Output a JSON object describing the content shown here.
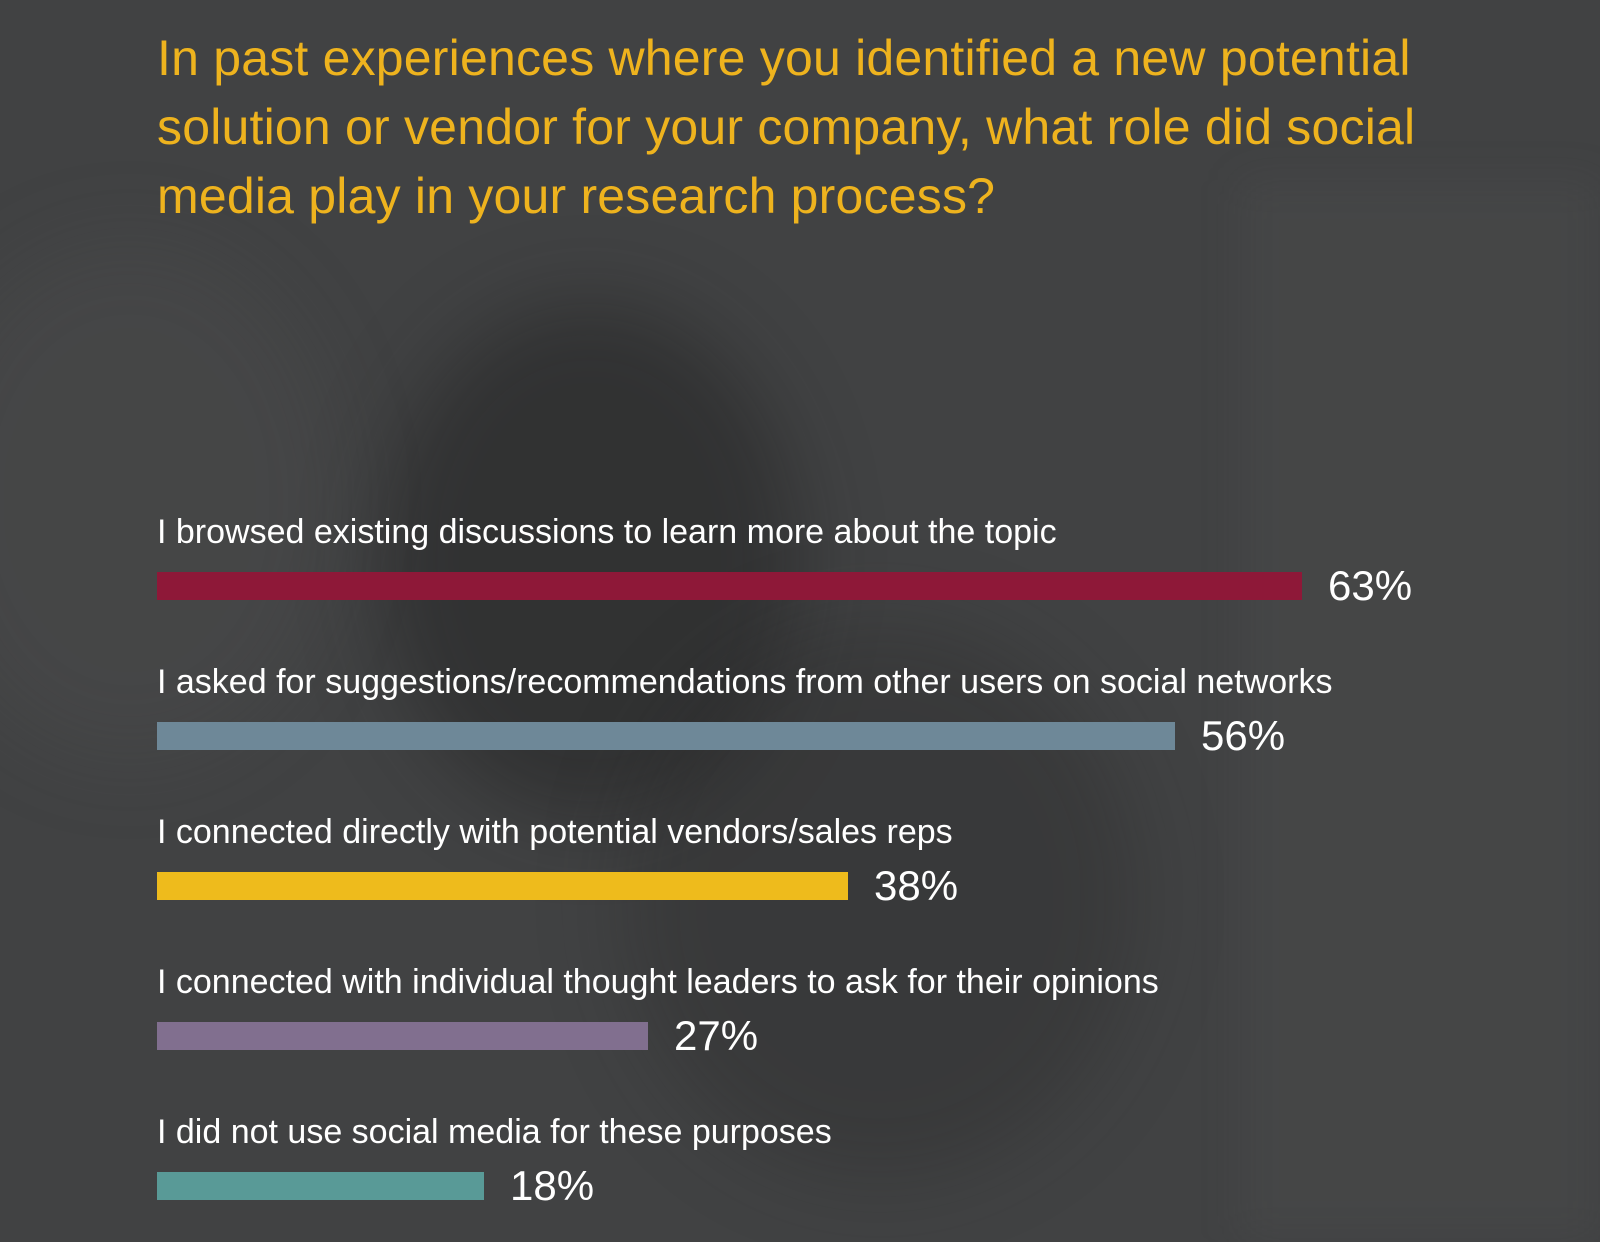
{
  "theme": {
    "background": "#414243",
    "title_color": "#EEB31E",
    "text_color": "#FFFFFF"
  },
  "chart_data": {
    "type": "bar",
    "orientation": "horizontal",
    "title": "In past experiences where you identified a new potential solution or vendor for your company, what role did social media play in your research process?",
    "unit": "%",
    "xlim": [
      0,
      100
    ],
    "grid": false,
    "legend": "none",
    "categories": [
      "I browsed existing discussions to learn more about the topic",
      "I asked for suggestions/recommendations from other users on social networks",
      "I connected directly with potential vendors/sales reps",
      "I connected with individual thought leaders to ask for their opinions",
      "I did not use social media for these purposes"
    ],
    "values": [
      63,
      56,
      38,
      27,
      18
    ],
    "value_labels": [
      "63%",
      "56%",
      "38%",
      "27%",
      "18%"
    ],
    "colors": [
      "#8E1838",
      "#6E8898",
      "#EEBB1C",
      "#816F8F",
      "#599A97"
    ]
  }
}
